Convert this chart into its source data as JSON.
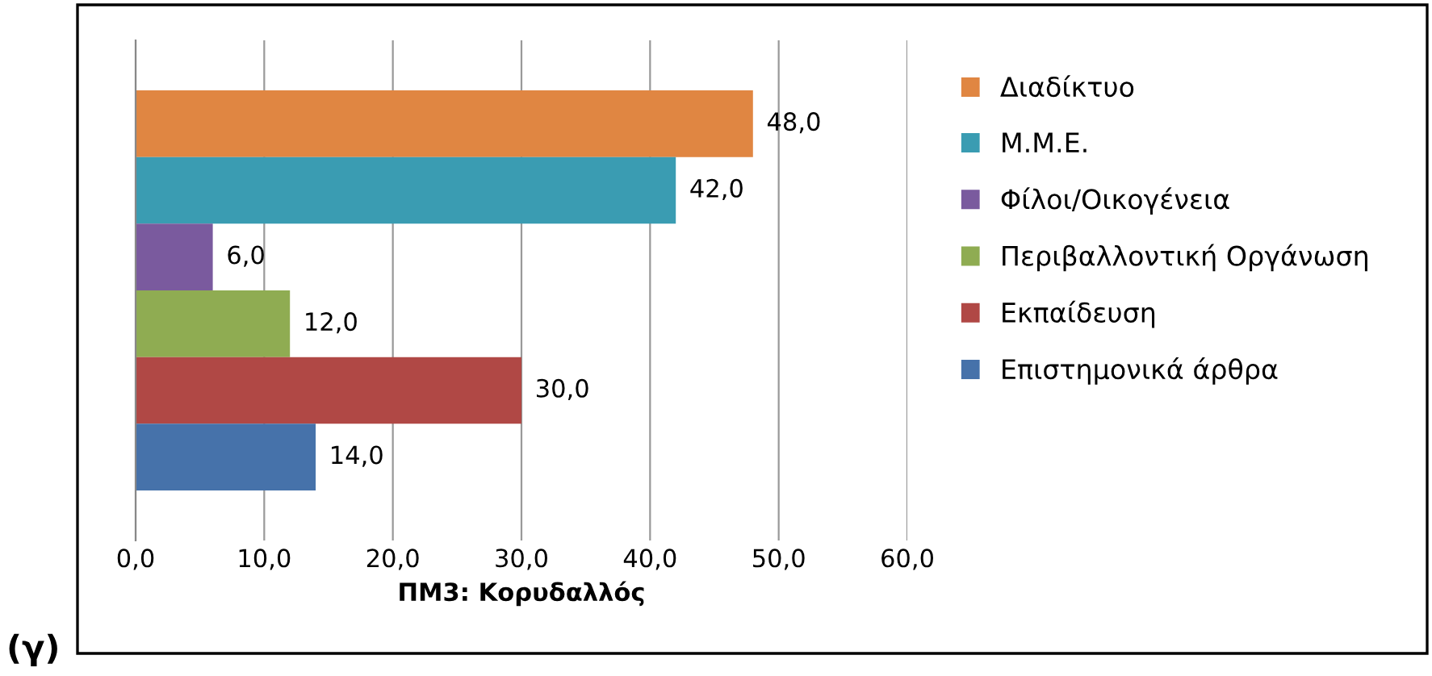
{
  "chart_data": {
    "type": "bar",
    "orientation": "horizontal",
    "xlabel": "ΠΜ3: Κορυδαλλός",
    "categories": [
      null
    ],
    "series": [
      {
        "name": "Διαδίκτυο",
        "color": "#e08642",
        "values": [
          48
        ],
        "value_labels": [
          "48,0"
        ]
      },
      {
        "name": "Μ.Μ.Ε.",
        "color": "#3a9cb2",
        "values": [
          42
        ],
        "value_labels": [
          "42,0"
        ]
      },
      {
        "name": "Φίλοι/Οικογένεια",
        "color": "#7a5a9e",
        "values": [
          6
        ],
        "value_labels": [
          "6,0"
        ]
      },
      {
        "name": "Περιβαλλοντική Οργάνωση",
        "color": "#8fac52",
        "values": [
          12
        ],
        "value_labels": [
          "12,0"
        ]
      },
      {
        "name": "Εκπαίδευση",
        "color": "#b04845",
        "values": [
          30
        ],
        "value_labels": [
          "30,0"
        ]
      },
      {
        "name": "Επιστημονικά άρθρα",
        "color": "#4672aa",
        "values": [
          14
        ],
        "value_labels": [
          "14,0"
        ]
      }
    ],
    "xlim": [
      0,
      60
    ],
    "xticks": [
      {
        "value": 0,
        "label": "0,0"
      },
      {
        "value": 10,
        "label": "10,0"
      },
      {
        "value": 20,
        "label": "20,0"
      },
      {
        "value": 30,
        "label": "30,0"
      },
      {
        "value": 40,
        "label": "40,0"
      },
      {
        "value": 50,
        "label": "50,0"
      },
      {
        "value": 60,
        "label": "60,0"
      }
    ],
    "grid": "x",
    "legend": "right",
    "tick_labels": "x",
    "annotations": [
      "(γ)"
    ]
  }
}
